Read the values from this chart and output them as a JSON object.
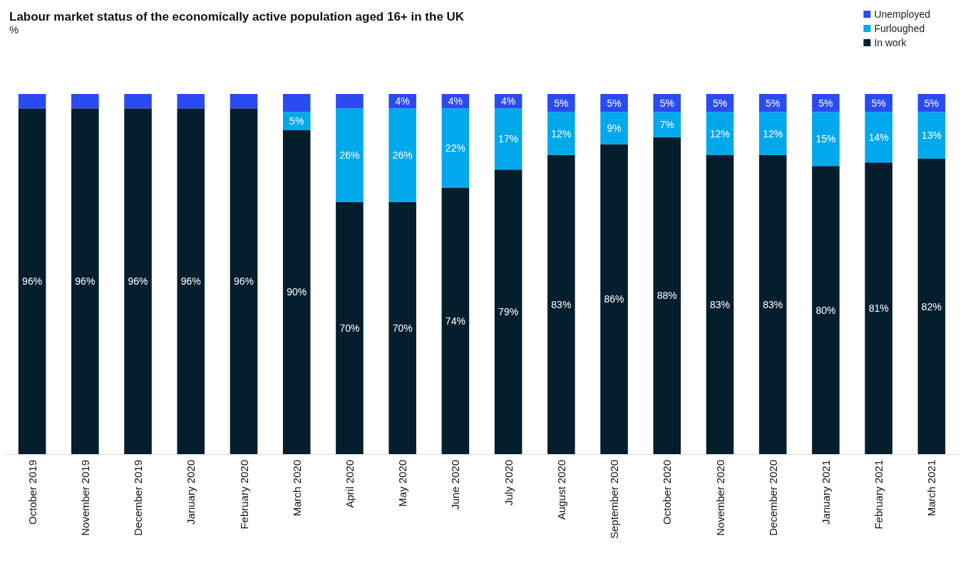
{
  "chart_data": {
    "type": "bar",
    "title": "Labour market status of the economically active population aged 16+ in the UK",
    "subtitle": "%",
    "categories": [
      "October 2019",
      "November 2019",
      "December 2019",
      "January 2020",
      "February 2020",
      "March 2020",
      "April 2020",
      "May 2020",
      "June 2020",
      "July 2020",
      "August 2020",
      "September 2020",
      "October 2020",
      "November 2020",
      "December 2020",
      "January 2021",
      "February 2021",
      "March 2021"
    ],
    "stacked": true,
    "ylim": [
      0,
      100
    ],
    "legend": "top right",
    "series": [
      {
        "name": "In work",
        "color": "#041e2e",
        "values": [
          96,
          96,
          96,
          96,
          96,
          90,
          70,
          70,
          74,
          79,
          83,
          86,
          88,
          83,
          83,
          80,
          81,
          82
        ],
        "value_labels": [
          "96%",
          "96%",
          "96%",
          "96%",
          "96%",
          "90%",
          "70%",
          "70%",
          "74%",
          "79%",
          "83%",
          "86%",
          "88%",
          "83%",
          "83%",
          "80%",
          "81%",
          "82%"
        ]
      },
      {
        "name": "Furloughed",
        "color": "#00a8ec",
        "values": [
          0,
          0,
          0,
          0,
          0,
          5,
          26,
          26,
          22,
          17,
          12,
          9,
          7,
          12,
          12,
          15,
          14,
          13
        ],
        "value_labels": [
          null,
          null,
          null,
          null,
          null,
          "5%",
          "26%",
          "26%",
          "22%",
          "17%",
          "12%",
          "9%",
          "7%",
          "12%",
          "12%",
          "15%",
          "14%",
          "13%"
        ]
      },
      {
        "name": "Unemployed",
        "color": "#2b4bf2",
        "values": [
          4,
          4,
          4,
          4,
          4,
          5,
          4,
          4,
          4,
          4,
          5,
          5,
          5,
          5,
          5,
          5,
          5,
          5
        ],
        "value_labels": [
          null,
          null,
          null,
          null,
          null,
          null,
          null,
          "4%",
          "4%",
          "4%",
          "5%",
          "5%",
          "5%",
          "5%",
          "5%",
          "5%",
          "5%",
          "5%"
        ]
      }
    ]
  }
}
